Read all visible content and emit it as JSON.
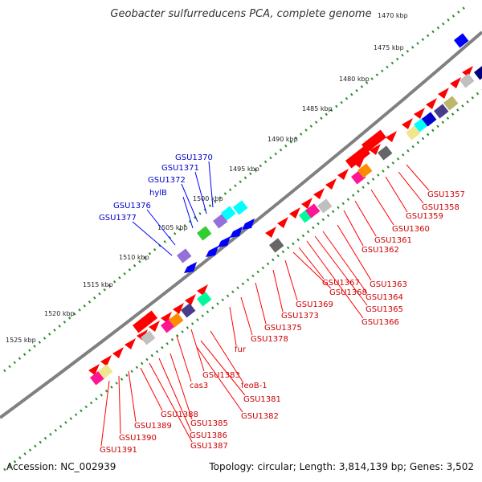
{
  "title": "Geobacter sulfurreducens PCA, complete genome",
  "accession": "Accession: NC_002939",
  "summary": "Topology: circular; Length: 3,814,139 bp; Genes: 3,502",
  "ticks": [
    "1470 kbp",
    "1475 kbp",
    "1480 kbp",
    "1485 kbp",
    "1490 kbp",
    "1495 kbp",
    "1500 kbp",
    "1505 kbp",
    "1510 kbp",
    "1515 kbp",
    "1520 kbp",
    "1525 kbp"
  ],
  "blue_labels": [
    "GSU1370",
    "GSU1371",
    "GSU1372",
    "hylB",
    "GSU1376",
    "GSU1377"
  ],
  "red_labels": [
    "GSU1357",
    "GSU1358",
    "GSU1359",
    "GSU1360",
    "GSU1361",
    "GSU1362",
    "GSU1363",
    "GSU1364",
    "GSU1365",
    "GSU1366",
    "GSU1367",
    "GSU1368",
    "GSU1369",
    "GSU1373",
    "GSU1375",
    "GSU1378",
    "fur",
    "GSU1383",
    "cas3",
    "feoB-1",
    "GSU1381",
    "GSU1382",
    "GSU1385",
    "GSU1386",
    "GSU1387",
    "GSU1388",
    "GSU1389",
    "GSU1390",
    "GSU1391"
  ],
  "colors": {
    "backbone": "#808080",
    "tick": "#2e8b2e",
    "gene": "#ff0000",
    "blue_gene": "#0000ff",
    "forward_label": "#0000cc",
    "reverse_label": "#cc0000"
  }
}
